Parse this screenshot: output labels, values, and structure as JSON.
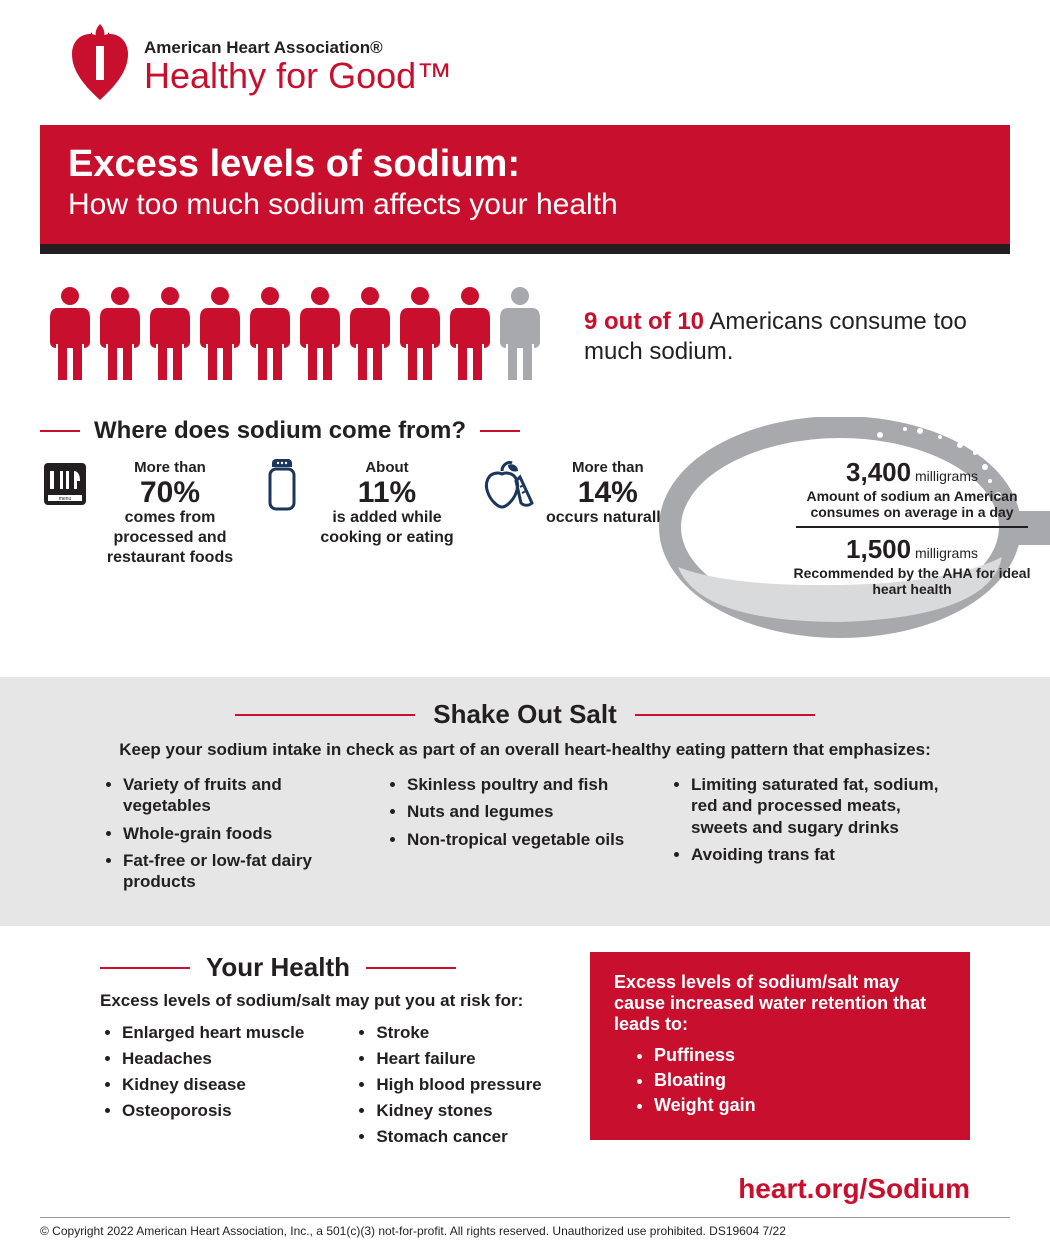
{
  "colors": {
    "brand_red": "#c8102e",
    "black": "#231f20",
    "gray_bg": "#e6e6e6",
    "icon_gray": "#a7a9ac",
    "white": "#ffffff"
  },
  "header": {
    "org_name": "American Heart Association®",
    "tagline": "Healthy for Good™"
  },
  "banner": {
    "title": "Excess levels of sodium:",
    "subtitle": "How too much sodium affects your health"
  },
  "people_stat": {
    "total_icons": 10,
    "red_count": 9,
    "figure_text": "9 out of 10",
    "tail_text": " Americans consume too much sodium."
  },
  "sources": {
    "heading": "Where does sodium come from?",
    "items": [
      {
        "icon": "menu-icon",
        "pre": "More than",
        "pct": "70%",
        "desc": "comes from processed and restaurant foods"
      },
      {
        "icon": "shaker-icon",
        "pre": "About",
        "pct": "11%",
        "desc": "is added while cooking or eating"
      },
      {
        "icon": "produce-icon",
        "pre": "More than",
        "pct": "14%",
        "desc": "occurs naturally"
      }
    ]
  },
  "spoon": {
    "top_value": "3,400",
    "top_unit": "milligrams",
    "top_caption": "Amount of sodium an American consumes on average in a day",
    "bot_value": "1,500",
    "bot_unit": "milligrams",
    "bot_caption": "Recommended by the AHA for ideal heart health"
  },
  "shake": {
    "heading": "Shake Out Salt",
    "sub": "Keep your sodium intake in check as part of an overall heart-healthy eating pattern that emphasizes:",
    "col1": [
      "Variety of fruits and vegetables",
      "Whole-grain foods",
      "Fat-free or low-fat dairy products"
    ],
    "col2": [
      "Skinless poultry and fish",
      "Nuts and legumes",
      "Non-tropical vegetable oils"
    ],
    "col3": [
      "Limiting saturated fat, sodium, red and processed meats, sweets and sugary drinks",
      "Avoiding trans fat"
    ]
  },
  "health": {
    "heading": "Your Health",
    "sub": "Excess levels of sodium/salt may put you at risk for:",
    "col1": [
      "Enlarged heart muscle",
      "Headaches",
      "Kidney disease",
      "Osteoporosis"
    ],
    "col2": [
      "Stroke",
      "Heart failure",
      "High blood pressure",
      "Kidney stones",
      "Stomach cancer"
    ]
  },
  "red_box": {
    "lead": "Excess levels of sodium/salt may cause increased water retention that leads to:",
    "items": [
      "Puffiness",
      "Bloating",
      "Weight gain"
    ]
  },
  "url": "heart.org/Sodium",
  "copyright": "© Copyright 2022 American Heart Association, Inc., a 501(c)(3) not-for-profit. All rights reserved. Unauthorized use prohibited. DS19604 7/22"
}
